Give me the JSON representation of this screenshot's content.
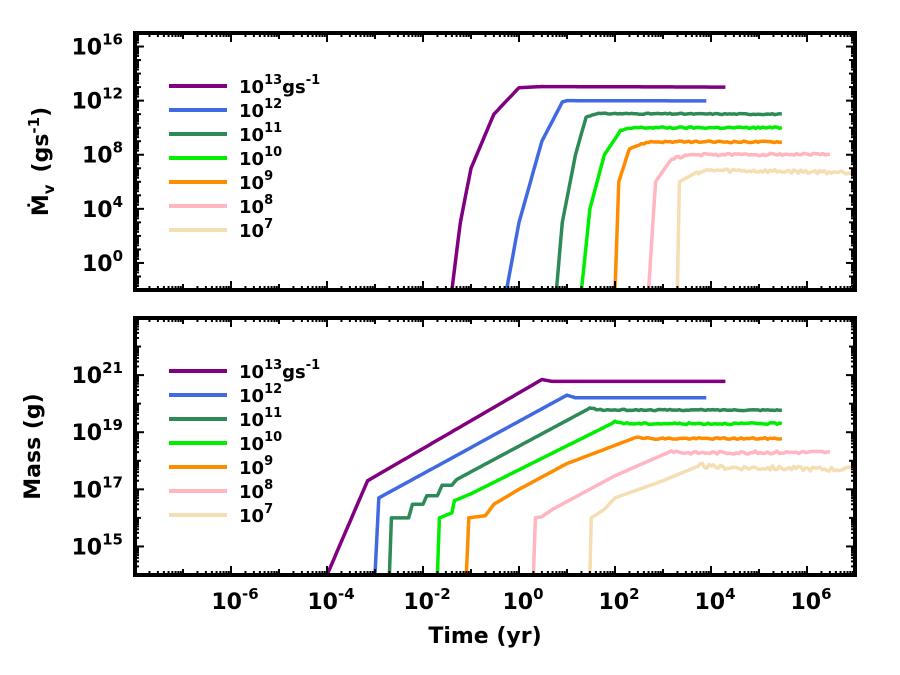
{
  "chart_data": [
    {
      "type": "line",
      "panel": "top",
      "ylabel": "Ṁ",
      "ylabel_subscript": "v",
      "ylabel_unit": "(gs-1)",
      "ylabel_unit_base": "(gs",
      "ylabel_unit_exp": "-1",
      "ylabel_unit_close": ")",
      "xscale": "log",
      "yscale": "log",
      "xlim": [
        1e-08,
        10000000.0
      ],
      "ylim": [
        0.01,
        1e+17
      ],
      "yticks": [
        {
          "value": 1,
          "base": "10",
          "exp": "0"
        },
        {
          "value": 10000.0,
          "base": "10",
          "exp": "4"
        },
        {
          "value": 100000000.0,
          "base": "10",
          "exp": "8"
        },
        {
          "value": 1000000000000.0,
          "base": "10",
          "exp": "12"
        },
        {
          "value": 1e+16,
          "base": "10",
          "exp": "16"
        }
      ],
      "legend": {
        "location": "upper-left",
        "entries": [
          {
            "base": "10",
            "exp": "13",
            "unit": "gs",
            "unit_exp": "-1"
          },
          {
            "base": "10",
            "exp": "12"
          },
          {
            "base": "10",
            "exp": "11"
          },
          {
            "base": "10",
            "exp": "10"
          },
          {
            "base": "10",
            "exp": "9"
          },
          {
            "base": "10",
            "exp": "8"
          },
          {
            "base": "10",
            "exp": "7"
          }
        ]
      },
      "series": [
        {
          "color": "#800080",
          "noise": 0,
          "points": [
            [
              0.04,
              0.01
            ],
            [
              0.06,
              1000.0
            ],
            [
              0.1,
              10000000.0
            ],
            [
              0.3,
              100000000000.0
            ],
            [
              1,
              9000000000000.0
            ],
            [
              3,
              11000000000000.0
            ],
            [
              20000,
              10000000000000.0
            ]
          ]
        },
        {
          "color": "#4169E1",
          "noise": 0,
          "points": [
            [
              0.55,
              0.01
            ],
            [
              1,
              1000.0
            ],
            [
              3,
              1000000000.0
            ],
            [
              8,
              800000000000.0
            ],
            [
              10,
              1000000000000.0
            ],
            [
              8000,
              950000000000.0
            ]
          ]
        },
        {
          "color": "#2E8B57",
          "noise": 0.04,
          "points": [
            [
              6,
              0.01
            ],
            [
              8,
              1000.0
            ],
            [
              15,
              100000000.0
            ],
            [
              25,
              60000000000.0
            ],
            [
              40,
              110000000000.0
            ],
            [
              300000,
              100000000000.0
            ]
          ]
        },
        {
          "color": "#00EE00",
          "noise": 0.06,
          "points": [
            [
              20,
              0.01
            ],
            [
              30,
              10000.0
            ],
            [
              60,
              100000000.0
            ],
            [
              130,
              6000000000.0
            ],
            [
              250,
              10000000000.0
            ],
            [
              300000,
              10000000000.0
            ]
          ]
        },
        {
          "color": "#FF8C00",
          "noise": 0.06,
          "points": [
            [
              100,
              0.01
            ],
            [
              120,
              1000000.0
            ],
            [
              200,
              300000000.0
            ],
            [
              500,
              900000000.0
            ],
            [
              300000,
              900000000.0
            ]
          ]
        },
        {
          "color": "#FFB6C1",
          "noise": 0.08,
          "points": [
            [
              500,
              0.01
            ],
            [
              700,
              1000000.0
            ],
            [
              1500,
              50000000.0
            ],
            [
              4000,
              100000000.0
            ],
            [
              3000000,
              110000000.0
            ]
          ]
        },
        {
          "color": "#F5DEB3",
          "noise": 0.14,
          "points": [
            [
              2000,
              0.01
            ],
            [
              2200,
              1000000.0
            ],
            [
              5000,
              5000000.0
            ],
            [
              10000,
              7000000.0
            ],
            [
              9000000,
              5000000.0
            ]
          ]
        }
      ]
    },
    {
      "type": "line",
      "panel": "bottom",
      "ylabel": "Mass (g)",
      "xlabel": "Time (yr)",
      "xscale": "log",
      "yscale": "log",
      "xlim": [
        1e-08,
        10000000.0
      ],
      "ylim": [
        100000000000000.0,
        1e+23
      ],
      "xticks": [
        {
          "value": 1e-06,
          "base": "10",
          "exp": "-6"
        },
        {
          "value": 0.0001,
          "base": "10",
          "exp": "-4"
        },
        {
          "value": 0.01,
          "base": "10",
          "exp": "-2"
        },
        {
          "value": 1,
          "base": "10",
          "exp": "0"
        },
        {
          "value": 100.0,
          "base": "10",
          "exp": "2"
        },
        {
          "value": 10000.0,
          "base": "10",
          "exp": "4"
        },
        {
          "value": 1000000.0,
          "base": "10",
          "exp": "6"
        }
      ],
      "yticks": [
        {
          "value": 1000000000000000.0,
          "base": "10",
          "exp": "15"
        },
        {
          "value": 1e+17,
          "base": "10",
          "exp": "17"
        },
        {
          "value": 1e+19,
          "base": "10",
          "exp": "19"
        },
        {
          "value": 1e+21,
          "base": "10",
          "exp": "21"
        }
      ],
      "legend": {
        "location": "upper-left",
        "entries": [
          {
            "base": "10",
            "exp": "13",
            "unit": "gs",
            "unit_exp": "-1"
          },
          {
            "base": "10",
            "exp": "12"
          },
          {
            "base": "10",
            "exp": "11"
          },
          {
            "base": "10",
            "exp": "10"
          },
          {
            "base": "10",
            "exp": "9"
          },
          {
            "base": "10",
            "exp": "8"
          },
          {
            "base": "10",
            "exp": "7"
          }
        ]
      },
      "series": [
        {
          "color": "#800080",
          "noise": 0,
          "points": [
            [
              0.0001,
              100000000000000.0
            ],
            [
              0.0007,
              2e+17
            ],
            [
              3,
              7e+20
            ],
            [
              5,
              6e+20
            ],
            [
              20000,
              6e+20
            ]
          ]
        },
        {
          "color": "#4169E1",
          "noise": 0,
          "points": [
            [
              0.001,
              100000000000000.0
            ],
            [
              0.0012,
              5e+16
            ],
            [
              10,
              2e+20
            ],
            [
              15,
              1.6e+20
            ],
            [
              8000,
              1.6e+20
            ]
          ]
        },
        {
          "color": "#2E8B57",
          "noise": 0.02,
          "points": [
            [
              0.002,
              100000000000000.0
            ],
            [
              0.0022,
              1e+16
            ],
            [
              0.005,
              1e+16
            ],
            [
              0.006,
              3e+16
            ],
            [
              0.01,
              3e+16
            ],
            [
              0.012,
              6e+16
            ],
            [
              0.02,
              6e+16
            ],
            [
              0.025,
              1.4e+17
            ],
            [
              0.04,
              1.4e+17
            ],
            [
              0.05,
              2.2e+17
            ],
            [
              30,
              7e+19
            ],
            [
              50,
              6e+19
            ],
            [
              300000,
              6e+19
            ]
          ]
        },
        {
          "color": "#00EE00",
          "noise": 0.03,
          "points": [
            [
              0.02,
              100000000000000.0
            ],
            [
              0.022,
              1e+16
            ],
            [
              0.04,
              1.5e+16
            ],
            [
              0.045,
              4e+16
            ],
            [
              0.1,
              7e+16
            ],
            [
              100,
              2.3e+19
            ],
            [
              200,
              2e+19
            ],
            [
              300000,
              2e+19
            ]
          ]
        },
        {
          "color": "#FF8C00",
          "noise": 0.03,
          "points": [
            [
              0.08,
              100000000000000.0
            ],
            [
              0.09,
              1e+16
            ],
            [
              0.2,
              1.2e+16
            ],
            [
              0.3,
              3e+16
            ],
            [
              1,
              1e+17
            ],
            [
              10,
              8e+17
            ],
            [
              300,
              7e+18
            ],
            [
              500,
              6e+18
            ],
            [
              300000,
              6e+18
            ]
          ]
        },
        {
          "color": "#FFB6C1",
          "noise": 0.05,
          "points": [
            [
              2,
              100000000000000.0
            ],
            [
              2.2,
              1e+16
            ],
            [
              3,
              1.1e+16
            ],
            [
              5,
              2e+16
            ],
            [
              100,
              3e+17
            ],
            [
              1500,
              2.2e+18
            ],
            [
              3000,
              1.9e+18
            ],
            [
              3000000,
              2e+18
            ]
          ]
        },
        {
          "color": "#F5DEB3",
          "noise": 0.08,
          "points": [
            [
              30,
              100000000000000.0
            ],
            [
              32,
              1e+16
            ],
            [
              60,
              2e+16
            ],
            [
              100,
              5e+16
            ],
            [
              1000,
              2e+17
            ],
            [
              6000,
              7e+17
            ],
            [
              10000,
              6e+17
            ],
            [
              9000000,
              5e+17
            ]
          ]
        }
      ]
    }
  ]
}
